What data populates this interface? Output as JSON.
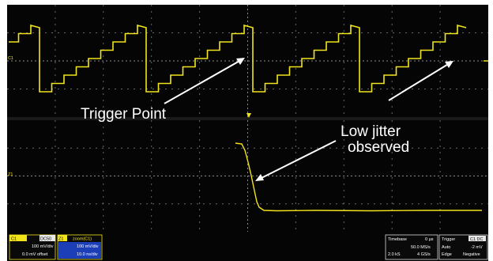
{
  "annotations": {
    "trigger_point": "Trigger Point",
    "low_jitter_line1": "Low jitter",
    "low_jitter_line2": "observed"
  },
  "channels": {
    "c1_label": "C1",
    "c1_code": "DC50",
    "c1_vdiv": "100 mV/div",
    "c1_offset": "0.0 mV offset",
    "z1_label": "Z1",
    "z1_source": "zoom(C1)",
    "z1_vdiv": "100 mV/div",
    "z1_tdiv": "10.0 ns/div"
  },
  "timebase": {
    "label": "Timebase",
    "value": "0 µs",
    "sample_rate": "50.0 MS/s",
    "points": "2.0 kS",
    "rate2": "4 GS/s"
  },
  "trigger": {
    "label": "Trigger",
    "code": "C1 DC",
    "mode": "Auto",
    "level": "-2 mV",
    "type": "Edge",
    "slope": "Negative"
  },
  "channel_markers": {
    "c1": "C1",
    "z1": "Z1"
  },
  "colors": {
    "trace": "#f2e41b",
    "background": "#050505",
    "grid": "#6a6a6a",
    "c1_badge": "#f2e41b",
    "z1_badge": "#f2e41b",
    "info_box": "#1c3fb8"
  }
}
